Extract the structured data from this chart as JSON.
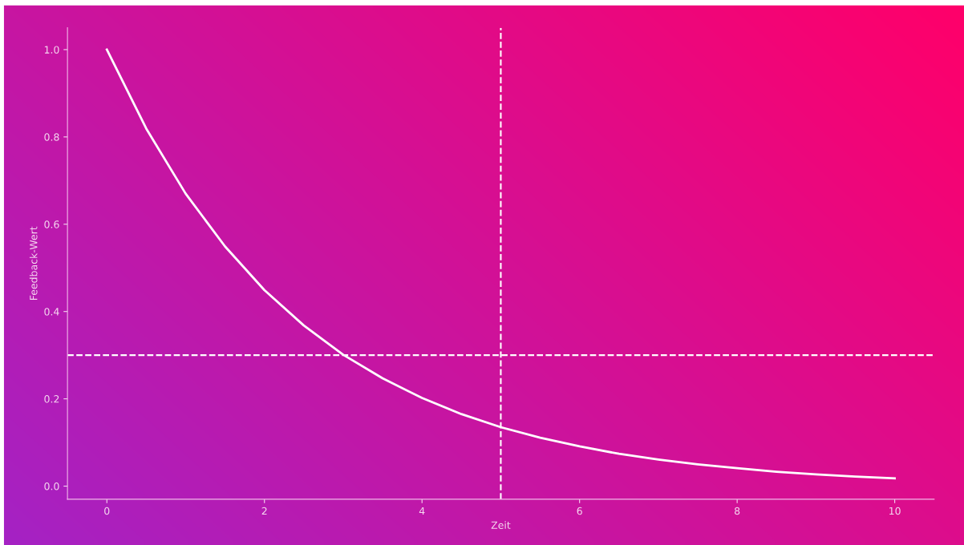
{
  "chart_data": {
    "type": "line",
    "xlabel": "Zeit",
    "ylabel": "Feedback-Wert",
    "x": [
      0,
      0.5,
      1,
      1.5,
      2,
      2.5,
      3,
      3.5,
      4,
      4.5,
      5,
      5.5,
      6,
      6.5,
      7,
      7.5,
      8,
      8.5,
      9,
      9.5,
      10
    ],
    "series": [
      {
        "color": "#ffffff",
        "values": [
          1.0,
          0.819,
          0.67,
          0.549,
          0.449,
          0.368,
          0.301,
          0.247,
          0.202,
          0.165,
          0.135,
          0.111,
          0.091,
          0.074,
          0.061,
          0.05,
          0.041,
          0.033,
          0.027,
          0.022,
          0.018
        ]
      }
    ],
    "xlim": [
      -0.5,
      10.5
    ],
    "xticks": [
      0,
      2,
      4,
      6,
      8,
      10
    ],
    "ylim": [
      -0.03,
      1.05
    ],
    "yticks": [
      {
        "value": 0,
        "label": "0.0"
      },
      0.2,
      0.4,
      0.6,
      0.8,
      {
        "value": 1,
        "label": "1.0"
      }
    ],
    "ref_lines": [
      {
        "axis": "y",
        "value": 0.3,
        "color": "#ffffff",
        "line_style": "dashed"
      },
      {
        "axis": "x",
        "value": 5,
        "color": "#ffffff",
        "line_style": "dashed"
      }
    ],
    "grid": false,
    "marker": "none",
    "line_style": "solid"
  }
}
